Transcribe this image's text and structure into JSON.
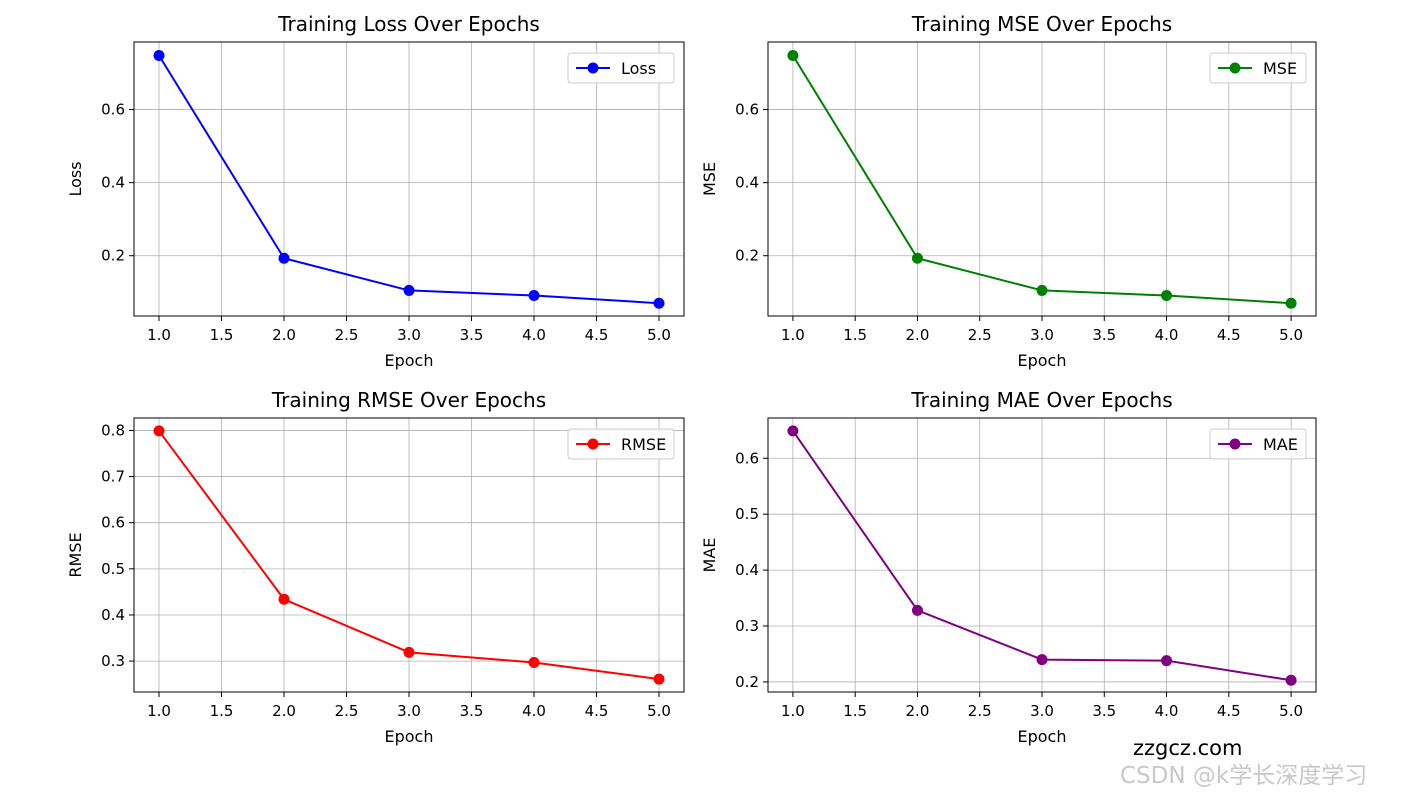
{
  "chart_data": [
    {
      "type": "line",
      "title": "Training Loss Over Epochs",
      "xlabel": "Epoch",
      "ylabel": "Loss",
      "xlim": [
        0.8,
        5.2
      ],
      "ylim": [
        0.035,
        0.785
      ],
      "xticks": [
        1.0,
        1.5,
        2.0,
        2.5,
        3.0,
        3.5,
        4.0,
        4.5,
        5.0
      ],
      "yticks": [
        0.2,
        0.4,
        0.6
      ],
      "ytick_decimals": 1,
      "grid": true,
      "legend": "top-right",
      "series": [
        {
          "name": "Loss",
          "color": "#0000ff",
          "x": [
            1,
            2,
            3,
            4,
            5
          ],
          "y": [
            0.748,
            0.193,
            0.105,
            0.091,
            0.07
          ]
        }
      ]
    },
    {
      "type": "line",
      "title": "Training MSE Over Epochs",
      "xlabel": "Epoch",
      "ylabel": "MSE",
      "xlim": [
        0.8,
        5.2
      ],
      "ylim": [
        0.035,
        0.785
      ],
      "xticks": [
        1.0,
        1.5,
        2.0,
        2.5,
        3.0,
        3.5,
        4.0,
        4.5,
        5.0
      ],
      "yticks": [
        0.2,
        0.4,
        0.6
      ],
      "ytick_decimals": 1,
      "grid": true,
      "legend": "top-right",
      "series": [
        {
          "name": "MSE",
          "color": "#008000",
          "x": [
            1,
            2,
            3,
            4,
            5
          ],
          "y": [
            0.748,
            0.193,
            0.105,
            0.091,
            0.07
          ]
        }
      ]
    },
    {
      "type": "line",
      "title": "Training RMSE Over Epochs",
      "xlabel": "Epoch",
      "ylabel": "RMSE",
      "xlim": [
        0.8,
        5.2
      ],
      "ylim": [
        0.233,
        0.827
      ],
      "xticks": [
        1.0,
        1.5,
        2.0,
        2.5,
        3.0,
        3.5,
        4.0,
        4.5,
        5.0
      ],
      "yticks": [
        0.3,
        0.4,
        0.5,
        0.6,
        0.7,
        0.8
      ],
      "ytick_decimals": 1,
      "grid": true,
      "legend": "top-right",
      "series": [
        {
          "name": "RMSE",
          "color": "#ff0000",
          "x": [
            1,
            2,
            3,
            4,
            5
          ],
          "y": [
            0.799,
            0.434,
            0.319,
            0.297,
            0.261
          ]
        }
      ]
    },
    {
      "type": "line",
      "title": "Training MAE Over Epochs",
      "xlabel": "Epoch",
      "ylabel": "MAE",
      "xlim": [
        0.8,
        5.2
      ],
      "ylim": [
        0.182,
        0.672
      ],
      "xticks": [
        1.0,
        1.5,
        2.0,
        2.5,
        3.0,
        3.5,
        4.0,
        4.5,
        5.0
      ],
      "yticks": [
        0.2,
        0.3,
        0.4,
        0.5,
        0.6
      ],
      "ytick_decimals": 1,
      "grid": true,
      "legend": "top-right",
      "series": [
        {
          "name": "MAE",
          "color": "#800080",
          "x": [
            1,
            2,
            3,
            4,
            5
          ],
          "y": [
            0.649,
            0.328,
            0.24,
            0.238,
            0.203
          ]
        }
      ]
    }
  ],
  "watermark": {
    "site": "zzgcz.com",
    "csdn": "CSDN @k学长深度学习"
  }
}
